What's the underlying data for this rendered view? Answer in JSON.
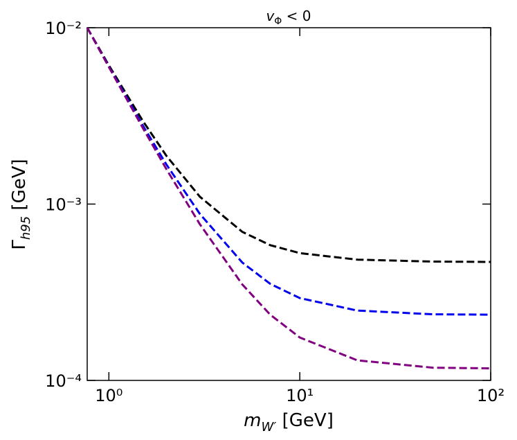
{
  "chart_data": {
    "type": "line",
    "title": {
      "symbol": "v",
      "subscript": "Φ",
      "rest": " < 0"
    },
    "xlabel": {
      "symbol": "m",
      "subscript": "W′",
      "rest": " [GeV]"
    },
    "ylabel": {
      "symbol": "Γ",
      "subscript": "h95",
      "rest": " [GeV]"
    },
    "log_x": true,
    "log_y": true,
    "xlim": [
      0.77,
      100
    ],
    "ylim": [
      0.0001,
      0.01
    ],
    "xticks": [
      {
        "value": 1,
        "label": "10⁰"
      },
      {
        "value": 10,
        "label": "10¹"
      },
      {
        "value": 100,
        "label": "10²"
      }
    ],
    "yticks": [
      {
        "value": 0.0001,
        "label": "10⁻⁴"
      },
      {
        "value": 0.001,
        "label": "10⁻³"
      },
      {
        "value": 0.01,
        "label": "10⁻²"
      }
    ],
    "x": [
      0.77,
      1,
      1.5,
      2,
      3,
      5,
      7,
      10,
      20,
      50,
      100
    ],
    "series": [
      {
        "color": "#000000",
        "values": [
          0.01,
          0.00612,
          0.00298,
          0.00188,
          0.0011,
          0.000696,
          0.000585,
          0.000527,
          0.000484,
          0.000472,
          0.00047
        ]
      },
      {
        "color": "#0000ee",
        "values": [
          0.01,
          0.00602,
          0.00281,
          0.00168,
          0.000878,
          0.000466,
          0.000353,
          0.000293,
          0.000249,
          0.000237,
          0.000236
        ]
      },
      {
        "color": "#800080",
        "values": [
          0.01,
          0.00598,
          0.00272,
          0.00158,
          0.000767,
          0.00035,
          0.000236,
          0.000175,
          0.00013,
          0.000118,
          0.000117
        ]
      }
    ]
  }
}
